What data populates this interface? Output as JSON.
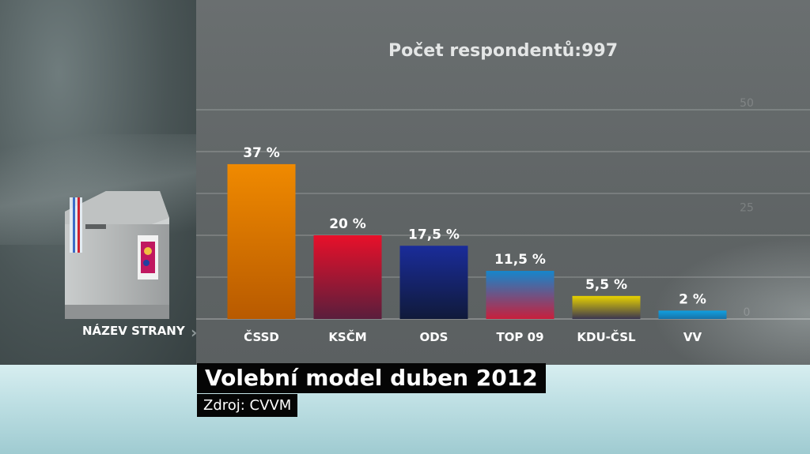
{
  "respondents_label": "Počet respondentů:997",
  "x_lead_label": "NÁZEV STRANY",
  "title": "Volební model duben 2012",
  "source": "Zdroj: CVVM",
  "chart_data": {
    "type": "bar",
    "categories": [
      "ČSSD",
      "KSČM",
      "ODS",
      "TOP 09",
      "KDU-ČSL",
      "VV"
    ],
    "values": [
      37,
      20,
      17.5,
      11.5,
      5.5,
      2
    ],
    "value_labels": [
      "37 %",
      "20 %",
      "17,5 %",
      "11,5 %",
      "5,5 %",
      "2 %"
    ],
    "ylim": [
      0,
      50
    ],
    "yticks": [
      0,
      25,
      50
    ],
    "grid": true,
    "colors": [
      [
        "#f08a00",
        "#b85a00"
      ],
      [
        "#e8102a",
        "#5a1e3c"
      ],
      [
        "#1a2c9a",
        "#101a3a"
      ],
      [
        "#1686cc",
        "#c8203c"
      ],
      [
        "#e8d200",
        "#3a3650"
      ],
      [
        "#10a0e0",
        "#1872a8"
      ]
    ]
  }
}
